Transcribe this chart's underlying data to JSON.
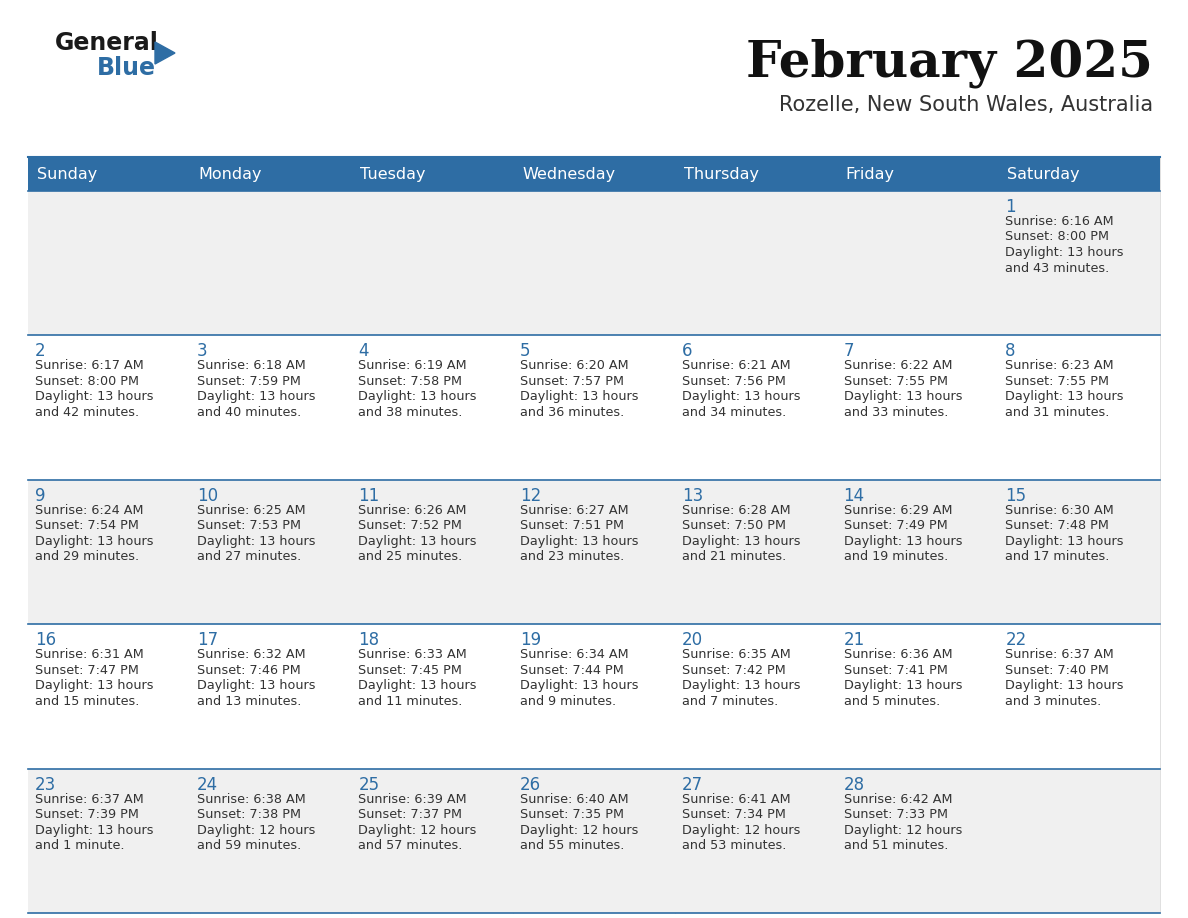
{
  "title": "February 2025",
  "subtitle": "Rozelle, New South Wales, Australia",
  "header_bg": "#2E6DA4",
  "header_text_color": "#FFFFFF",
  "day_names": [
    "Sunday",
    "Monday",
    "Tuesday",
    "Wednesday",
    "Thursday",
    "Friday",
    "Saturday"
  ],
  "row_bg_odd": "#F0F0F0",
  "row_bg_even": "#FFFFFF",
  "cell_border_color": "#2E6DA4",
  "date_color": "#2E6DA4",
  "info_color": "#333333",
  "logo_general_color": "#1a1a1a",
  "logo_blue_color": "#2E6DA4",
  "calendar_data": [
    [
      null,
      null,
      null,
      null,
      null,
      null,
      {
        "day": "1",
        "sunrise": "6:16 AM",
        "sunset": "8:00 PM",
        "daylight": "13 hours",
        "daylight2": "and 43 minutes."
      }
    ],
    [
      {
        "day": "2",
        "sunrise": "6:17 AM",
        "sunset": "8:00 PM",
        "daylight": "13 hours",
        "daylight2": "and 42 minutes."
      },
      {
        "day": "3",
        "sunrise": "6:18 AM",
        "sunset": "7:59 PM",
        "daylight": "13 hours",
        "daylight2": "and 40 minutes."
      },
      {
        "day": "4",
        "sunrise": "6:19 AM",
        "sunset": "7:58 PM",
        "daylight": "13 hours",
        "daylight2": "and 38 minutes."
      },
      {
        "day": "5",
        "sunrise": "6:20 AM",
        "sunset": "7:57 PM",
        "daylight": "13 hours",
        "daylight2": "and 36 minutes."
      },
      {
        "day": "6",
        "sunrise": "6:21 AM",
        "sunset": "7:56 PM",
        "daylight": "13 hours",
        "daylight2": "and 34 minutes."
      },
      {
        "day": "7",
        "sunrise": "6:22 AM",
        "sunset": "7:55 PM",
        "daylight": "13 hours",
        "daylight2": "and 33 minutes."
      },
      {
        "day": "8",
        "sunrise": "6:23 AM",
        "sunset": "7:55 PM",
        "daylight": "13 hours",
        "daylight2": "and 31 minutes."
      }
    ],
    [
      {
        "day": "9",
        "sunrise": "6:24 AM",
        "sunset": "7:54 PM",
        "daylight": "13 hours",
        "daylight2": "and 29 minutes."
      },
      {
        "day": "10",
        "sunrise": "6:25 AM",
        "sunset": "7:53 PM",
        "daylight": "13 hours",
        "daylight2": "and 27 minutes."
      },
      {
        "day": "11",
        "sunrise": "6:26 AM",
        "sunset": "7:52 PM",
        "daylight": "13 hours",
        "daylight2": "and 25 minutes."
      },
      {
        "day": "12",
        "sunrise": "6:27 AM",
        "sunset": "7:51 PM",
        "daylight": "13 hours",
        "daylight2": "and 23 minutes."
      },
      {
        "day": "13",
        "sunrise": "6:28 AM",
        "sunset": "7:50 PM",
        "daylight": "13 hours",
        "daylight2": "and 21 minutes."
      },
      {
        "day": "14",
        "sunrise": "6:29 AM",
        "sunset": "7:49 PM",
        "daylight": "13 hours",
        "daylight2": "and 19 minutes."
      },
      {
        "day": "15",
        "sunrise": "6:30 AM",
        "sunset": "7:48 PM",
        "daylight": "13 hours",
        "daylight2": "and 17 minutes."
      }
    ],
    [
      {
        "day": "16",
        "sunrise": "6:31 AM",
        "sunset": "7:47 PM",
        "daylight": "13 hours",
        "daylight2": "and 15 minutes."
      },
      {
        "day": "17",
        "sunrise": "6:32 AM",
        "sunset": "7:46 PM",
        "daylight": "13 hours",
        "daylight2": "and 13 minutes."
      },
      {
        "day": "18",
        "sunrise": "6:33 AM",
        "sunset": "7:45 PM",
        "daylight": "13 hours",
        "daylight2": "and 11 minutes."
      },
      {
        "day": "19",
        "sunrise": "6:34 AM",
        "sunset": "7:44 PM",
        "daylight": "13 hours",
        "daylight2": "and 9 minutes."
      },
      {
        "day": "20",
        "sunrise": "6:35 AM",
        "sunset": "7:42 PM",
        "daylight": "13 hours",
        "daylight2": "and 7 minutes."
      },
      {
        "day": "21",
        "sunrise": "6:36 AM",
        "sunset": "7:41 PM",
        "daylight": "13 hours",
        "daylight2": "and 5 minutes."
      },
      {
        "day": "22",
        "sunrise": "6:37 AM",
        "sunset": "7:40 PM",
        "daylight": "13 hours",
        "daylight2": "and 3 minutes."
      }
    ],
    [
      {
        "day": "23",
        "sunrise": "6:37 AM",
        "sunset": "7:39 PM",
        "daylight": "13 hours",
        "daylight2": "and 1 minute."
      },
      {
        "day": "24",
        "sunrise": "6:38 AM",
        "sunset": "7:38 PM",
        "daylight": "12 hours",
        "daylight2": "and 59 minutes."
      },
      {
        "day": "25",
        "sunrise": "6:39 AM",
        "sunset": "7:37 PM",
        "daylight": "12 hours",
        "daylight2": "and 57 minutes."
      },
      {
        "day": "26",
        "sunrise": "6:40 AM",
        "sunset": "7:35 PM",
        "daylight": "12 hours",
        "daylight2": "and 55 minutes."
      },
      {
        "day": "27",
        "sunrise": "6:41 AM",
        "sunset": "7:34 PM",
        "daylight": "12 hours",
        "daylight2": "and 53 minutes."
      },
      {
        "day": "28",
        "sunrise": "6:42 AM",
        "sunset": "7:33 PM",
        "daylight": "12 hours",
        "daylight2": "and 51 minutes."
      },
      null
    ]
  ],
  "figsize": [
    11.88,
    9.18
  ],
  "dpi": 100
}
